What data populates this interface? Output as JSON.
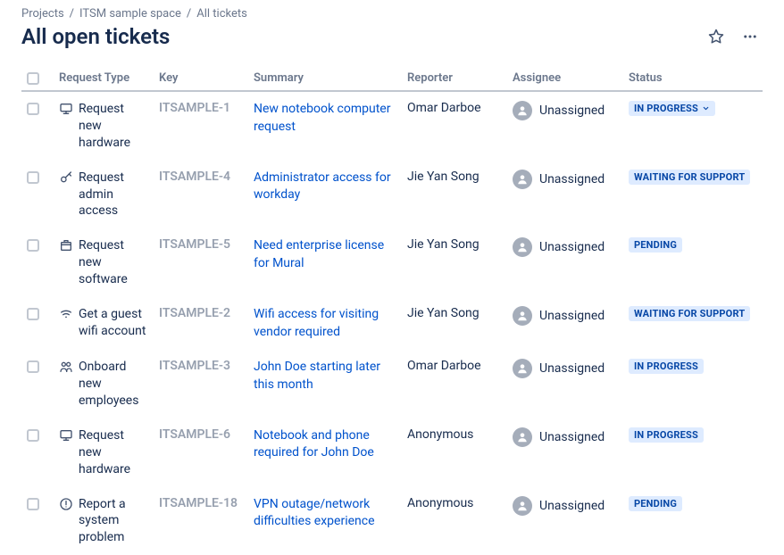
{
  "breadcrumbs": [
    "Projects",
    "ITSM sample space",
    "All tickets"
  ],
  "title": "All open tickets",
  "columns": {
    "type": "Request Type",
    "key": "Key",
    "summary": "Summary",
    "reporter": "Reporter",
    "assignee": "Assignee",
    "status": "Status"
  },
  "statusStyle": {
    "bg": "#deebff",
    "fg": "#0747a6"
  },
  "rows": [
    {
      "typeIcon": "monitor",
      "type": "Request new hardware",
      "key": "ITSAMPLE-1",
      "summary": "New notebook computer request",
      "reporter": "Omar Darboe",
      "assignee": "Unassigned",
      "status": "IN PROGRESS",
      "statusChevron": true
    },
    {
      "typeIcon": "key",
      "type": "Request admin access",
      "key": "ITSAMPLE-4",
      "summary": "Administrator access for workday",
      "reporter": "Jie Yan Song",
      "assignee": "Unassigned",
      "status": "WAITING FOR SUPPORT",
      "statusChevron": false
    },
    {
      "typeIcon": "package",
      "type": "Request new software",
      "key": "ITSAMPLE-5",
      "summary": "Need enterprise license for Mural",
      "reporter": "Jie Yan Song",
      "assignee": "Unassigned",
      "status": "PENDING",
      "statusChevron": false
    },
    {
      "typeIcon": "wifi",
      "type": "Get a guest wifi account",
      "key": "ITSAMPLE-2",
      "summary": "Wifi access for visiting vendor required",
      "reporter": "Jie Yan Song",
      "assignee": "Unassigned",
      "status": "WAITING FOR SUPPORT",
      "statusChevron": false
    },
    {
      "typeIcon": "people",
      "type": "Onboard new employees",
      "key": "ITSAMPLE-3",
      "summary": "John Doe starting later this month",
      "reporter": "Omar Darboe",
      "assignee": "Unassigned",
      "status": "IN PROGRESS",
      "statusChevron": false
    },
    {
      "typeIcon": "monitor",
      "type": "Request new hardware",
      "key": "ITSAMPLE-6",
      "summary": "Notebook and phone required for John Doe",
      "reporter": "Anonymous",
      "assignee": "Unassigned",
      "status": "IN PROGRESS",
      "statusChevron": false
    },
    {
      "typeIcon": "alert",
      "type": "Report a system problem",
      "key": "ITSAMPLE-18",
      "summary": "VPN outage/network difficulties experience",
      "reporter": "Anonymous",
      "assignee": "Unassigned",
      "status": "PENDING",
      "statusChevron": false
    }
  ]
}
